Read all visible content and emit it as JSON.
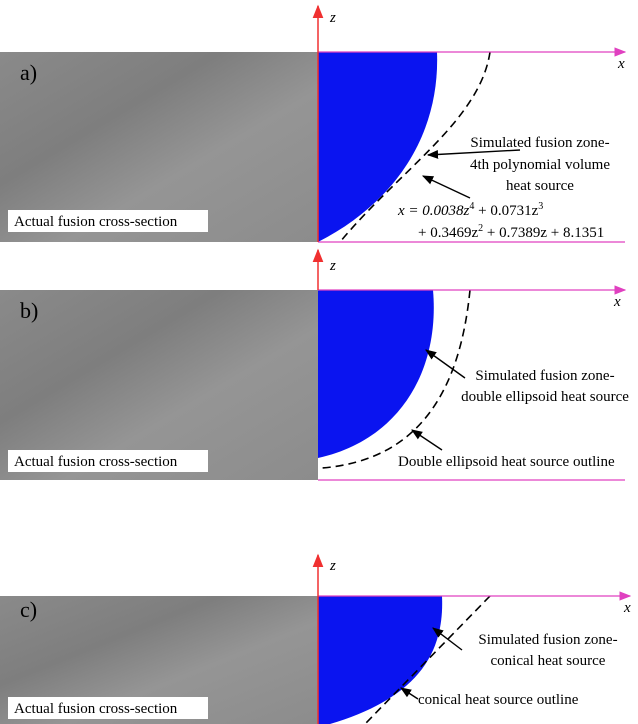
{
  "panels": [
    {
      "label": "a)",
      "z_label": "z",
      "x_label": "x",
      "photo_caption": "Actual fusion cross-section",
      "annotations": [
        {
          "lines": [
            "Simulated fusion zone-",
            "4th polynomial volume",
            "heat source"
          ]
        }
      ],
      "equation": {
        "line1": [
          "x = 0.0038z",
          "4",
          " + 0.0731z",
          "3"
        ],
        "line2": [
          "+ 0.3469z",
          "2",
          " + 0.7389z + 8.1351"
        ]
      }
    },
    {
      "label": "b)",
      "z_label": "z",
      "x_label": "x",
      "photo_caption": "Actual fusion cross-section",
      "annotations": [
        {
          "lines": [
            "Simulated fusion zone-",
            "double ellipsoid heat source"
          ]
        },
        {
          "lines": [
            "Double ellipsoid heat source outline"
          ]
        }
      ]
    },
    {
      "label": "c)",
      "z_label": "z",
      "x_label": "x",
      "photo_caption": "Actual fusion cross-section",
      "annotations": [
        {
          "lines": [
            "Simulated fusion zone-",
            "conical heat source"
          ]
        },
        {
          "lines": [
            "conical heat source outline"
          ]
        }
      ]
    }
  ]
}
